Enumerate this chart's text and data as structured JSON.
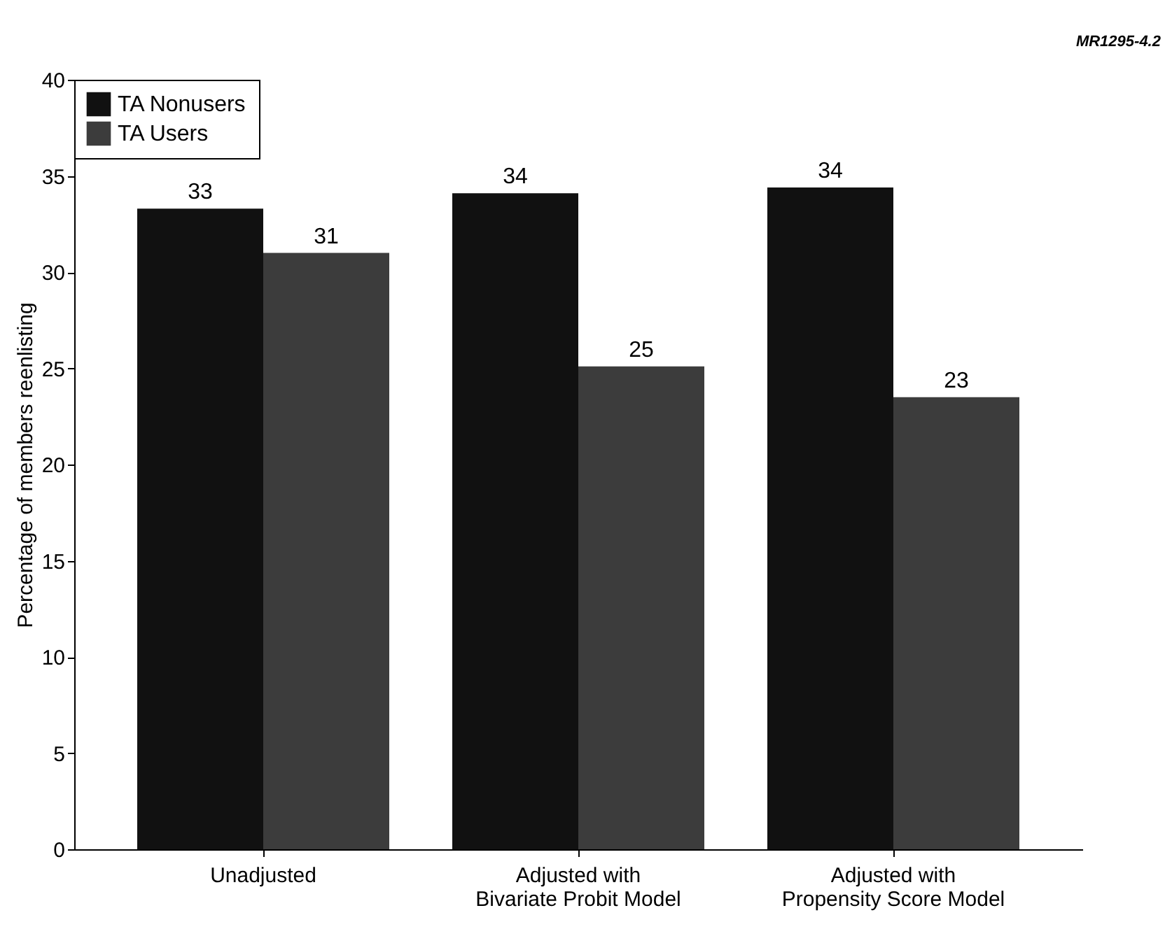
{
  "chart_data": {
    "type": "bar",
    "ylabel": "Percentage of members reenlisting",
    "categories": [
      "Unadjusted",
      "Adjusted with\nBivariate Probit Model",
      "Adjusted with\nPropensity Score Model"
    ],
    "series": [
      {
        "name": "TA Nonusers",
        "color": "#111111",
        "values": [
          33.3,
          34.1,
          34.4
        ],
        "value_labels": [
          "33",
          "34",
          "34"
        ]
      },
      {
        "name": "TA Users",
        "color": "#3c3c3c",
        "values": [
          31.0,
          25.1,
          23.5
        ],
        "value_labels": [
          "31",
          "25",
          "23"
        ]
      }
    ],
    "ylim": [
      0,
      40
    ],
    "yticks": [
      0,
      5,
      10,
      15,
      20,
      25,
      30,
      35,
      40
    ],
    "grid": false,
    "legend": "top left",
    "annotations": [
      "MR1295-4.2"
    ]
  }
}
